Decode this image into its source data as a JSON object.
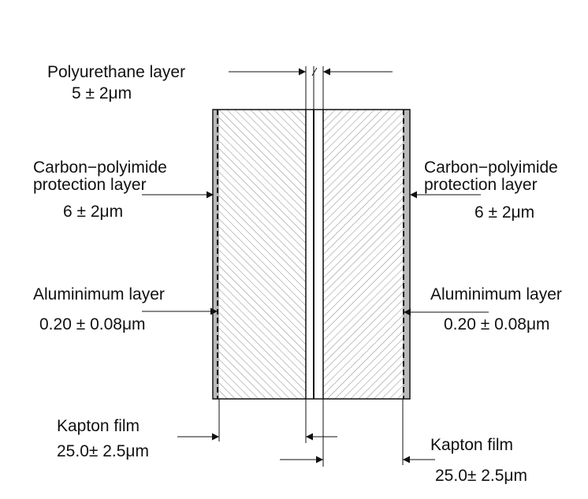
{
  "diagram": {
    "layers": {
      "polyurethane": {
        "name": "Polyurethane layer",
        "value": "5 ± 2μm"
      },
      "carbon_left": {
        "name_line1": "Carbon−polyimide",
        "name_line2": "protection layer",
        "value": "6 ± 2μm"
      },
      "carbon_right": {
        "name_line1": "Carbon−polyimide",
        "name_line2": "protection layer",
        "value": "6 ± 2μm"
      },
      "aluminium_left": {
        "name": "Aluminimum layer",
        "value": "0.20 ± 0.08μm"
      },
      "aluminium_right": {
        "name": "Aluminimum layer",
        "value": "0.20 ± 0.08μm"
      },
      "kapton_left": {
        "name": "Kapton film",
        "value": "25.0± 2.5μm"
      },
      "kapton_right": {
        "name": "Kapton film",
        "value": "25.0± 2.5μm"
      }
    },
    "colors": {
      "stroke": "#111111",
      "hatch": "#8a8a8a",
      "coating": "#b9b9b9",
      "background": "#ffffff"
    }
  }
}
